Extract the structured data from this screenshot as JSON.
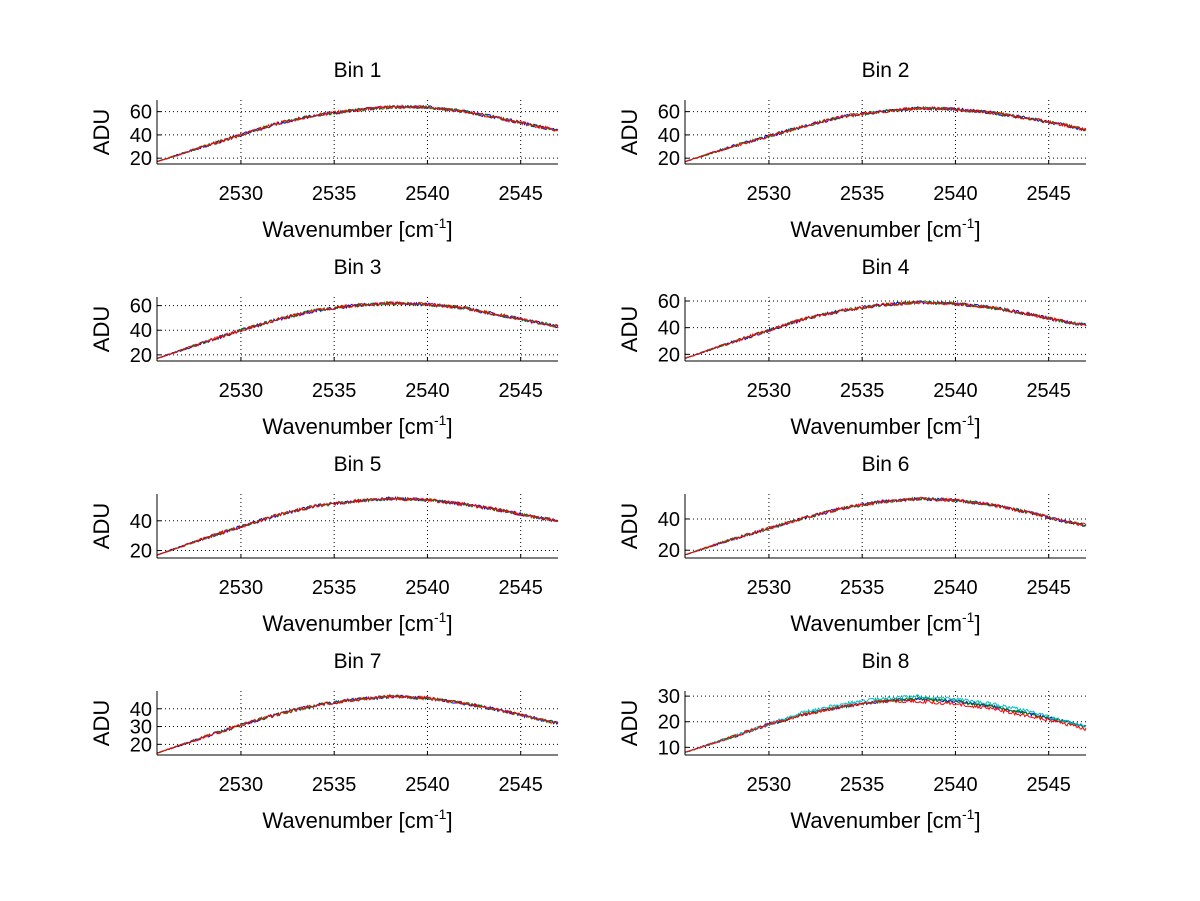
{
  "figure": {
    "background": "#ffffff"
  },
  "chart_data": [
    {
      "type": "line",
      "title": "Bin 1",
      "xlabel": "Wavenumber [cm",
      "xlabel_sup": "-1",
      "xlabel_close": "]",
      "ylabel": "ADU",
      "xlim": [
        2525.5,
        2547
      ],
      "ylim": [
        15,
        70
      ],
      "xticks": [
        2530,
        2535,
        2540,
        2545
      ],
      "yticks": [
        20,
        40,
        60
      ],
      "grid": true,
      "series": [
        {
          "name": "blue",
          "color": "#0000ff",
          "x": [
            2525.5,
            2528,
            2530,
            2532,
            2534,
            2536,
            2538,
            2540,
            2542,
            2544,
            2546,
            2547
          ],
          "y": [
            17,
            30,
            40,
            50,
            57,
            61,
            64,
            64,
            60,
            54,
            47,
            44
          ]
        },
        {
          "name": "green",
          "color": "#008000",
          "x": [
            2525.5,
            2528,
            2530,
            2532,
            2534,
            2536,
            2538,
            2540,
            2542,
            2544,
            2546,
            2547
          ],
          "y": [
            17,
            30,
            40,
            50,
            57,
            61,
            64,
            64,
            60,
            54,
            47,
            44
          ]
        },
        {
          "name": "red",
          "color": "#ff0000",
          "x": [
            2525.5,
            2528,
            2530,
            2532,
            2534,
            2536,
            2538,
            2540,
            2542,
            2544,
            2546,
            2547
          ],
          "y": [
            17,
            30,
            40,
            50,
            57,
            61,
            64,
            64,
            60,
            54,
            47,
            44
          ]
        }
      ]
    },
    {
      "type": "line",
      "title": "Bin 2",
      "xlabel": "Wavenumber [cm",
      "xlabel_sup": "-1",
      "xlabel_close": "]",
      "ylabel": "ADU",
      "xlim": [
        2525.5,
        2547
      ],
      "ylim": [
        15,
        70
      ],
      "xticks": [
        2530,
        2535,
        2540,
        2545
      ],
      "yticks": [
        20,
        40,
        60
      ],
      "grid": true,
      "series": [
        {
          "name": "blue",
          "color": "#0000ff",
          "x": [
            2525.5,
            2528,
            2530,
            2532,
            2534,
            2536,
            2538,
            2540,
            2542,
            2544,
            2546,
            2547
          ],
          "y": [
            17,
            30,
            39,
            48,
            56,
            60,
            63,
            62,
            59,
            54,
            48,
            44
          ]
        },
        {
          "name": "green",
          "color": "#008000",
          "x": [
            2525.5,
            2528,
            2530,
            2532,
            2534,
            2536,
            2538,
            2540,
            2542,
            2544,
            2546,
            2547
          ],
          "y": [
            17,
            30,
            39,
            48,
            56,
            60,
            63,
            62,
            59,
            54,
            48,
            44
          ]
        },
        {
          "name": "red",
          "color": "#ff0000",
          "x": [
            2525.5,
            2528,
            2530,
            2532,
            2534,
            2536,
            2538,
            2540,
            2542,
            2544,
            2546,
            2547
          ],
          "y": [
            17,
            30,
            39,
            48,
            56,
            60,
            63,
            62,
            59,
            54,
            48,
            44
          ]
        }
      ]
    },
    {
      "type": "line",
      "title": "Bin 3",
      "xlabel": "Wavenumber [cm",
      "xlabel_sup": "-1",
      "xlabel_close": "]",
      "ylabel": "ADU",
      "xlim": [
        2525.5,
        2547
      ],
      "ylim": [
        15,
        67
      ],
      "xticks": [
        2530,
        2535,
        2540,
        2545
      ],
      "yticks": [
        20,
        40,
        60
      ],
      "grid": true,
      "series": [
        {
          "name": "blue",
          "color": "#0000ff",
          "x": [
            2525.5,
            2528,
            2530,
            2532,
            2534,
            2536,
            2538,
            2540,
            2542,
            2544,
            2546,
            2547
          ],
          "y": [
            17,
            30,
            40,
            49,
            56,
            60,
            62,
            61,
            58,
            52,
            46,
            43
          ]
        },
        {
          "name": "green",
          "color": "#008000",
          "x": [
            2525.5,
            2528,
            2530,
            2532,
            2534,
            2536,
            2538,
            2540,
            2542,
            2544,
            2546,
            2547
          ],
          "y": [
            17,
            30,
            40,
            49,
            56,
            60,
            62,
            61,
            58,
            52,
            46,
            43
          ]
        },
        {
          "name": "red",
          "color": "#ff0000",
          "x": [
            2525.5,
            2528,
            2530,
            2532,
            2534,
            2536,
            2538,
            2540,
            2542,
            2544,
            2546,
            2547
          ],
          "y": [
            17,
            30,
            40,
            49,
            56,
            60,
            62,
            61,
            58,
            52,
            46,
            43
          ]
        }
      ]
    },
    {
      "type": "line",
      "title": "Bin 4",
      "xlabel": "Wavenumber [cm",
      "xlabel_sup": "-1",
      "xlabel_close": "]",
      "ylabel": "ADU",
      "xlim": [
        2525.5,
        2547
      ],
      "ylim": [
        15,
        63
      ],
      "xticks": [
        2530,
        2535,
        2540,
        2545
      ],
      "yticks": [
        20,
        40,
        60
      ],
      "grid": true,
      "series": [
        {
          "name": "blue",
          "color": "#0000ff",
          "x": [
            2525.5,
            2528,
            2530,
            2532,
            2534,
            2536,
            2538,
            2540,
            2542,
            2544,
            2546,
            2547
          ],
          "y": [
            17,
            29,
            38,
            47,
            53,
            57,
            59,
            58,
            55,
            50,
            44,
            42
          ]
        },
        {
          "name": "green",
          "color": "#008000",
          "x": [
            2525.5,
            2528,
            2530,
            2532,
            2534,
            2536,
            2538,
            2540,
            2542,
            2544,
            2546,
            2547
          ],
          "y": [
            17,
            29,
            38,
            47,
            53,
            57,
            59,
            58,
            55,
            50,
            44,
            42
          ]
        },
        {
          "name": "red",
          "color": "#ff0000",
          "x": [
            2525.5,
            2528,
            2530,
            2532,
            2534,
            2536,
            2538,
            2540,
            2542,
            2544,
            2546,
            2547
          ],
          "y": [
            17,
            29,
            38,
            47,
            53,
            57,
            59,
            58,
            55,
            50,
            44,
            42
          ]
        }
      ]
    },
    {
      "type": "line",
      "title": "Bin 5",
      "xlabel": "Wavenumber [cm",
      "xlabel_sup": "-1",
      "xlabel_close": "]",
      "ylabel": "ADU",
      "xlim": [
        2525.5,
        2547
      ],
      "ylim": [
        15,
        58
      ],
      "xticks": [
        2530,
        2535,
        2540,
        2545
      ],
      "yticks": [
        20,
        40
      ],
      "grid": true,
      "series": [
        {
          "name": "blue",
          "color": "#0000ff",
          "x": [
            2525.5,
            2528,
            2530,
            2532,
            2534,
            2536,
            2538,
            2540,
            2542,
            2544,
            2546,
            2547
          ],
          "y": [
            17,
            28,
            36,
            44,
            50,
            53,
            55,
            54,
            51,
            47,
            42,
            40
          ]
        },
        {
          "name": "green",
          "color": "#008000",
          "x": [
            2525.5,
            2528,
            2530,
            2532,
            2534,
            2536,
            2538,
            2540,
            2542,
            2544,
            2546,
            2547
          ],
          "y": [
            17,
            28,
            36,
            44,
            50,
            53,
            55,
            54,
            51,
            47,
            42,
            40
          ]
        },
        {
          "name": "red",
          "color": "#ff0000",
          "x": [
            2525.5,
            2528,
            2530,
            2532,
            2534,
            2536,
            2538,
            2540,
            2542,
            2544,
            2546,
            2547
          ],
          "y": [
            17,
            28,
            36,
            44,
            50,
            53,
            55,
            54,
            51,
            47,
            42,
            40
          ]
        }
      ]
    },
    {
      "type": "line",
      "title": "Bin 6",
      "xlabel": "Wavenumber [cm",
      "xlabel_sup": "-1",
      "xlabel_close": "]",
      "ylabel": "ADU",
      "xlim": [
        2525.5,
        2547
      ],
      "ylim": [
        15,
        56
      ],
      "xticks": [
        2530,
        2535,
        2540,
        2545
      ],
      "yticks": [
        20,
        40
      ],
      "grid": true,
      "series": [
        {
          "name": "blue",
          "color": "#0000ff",
          "x": [
            2525.5,
            2528,
            2530,
            2532,
            2534,
            2536,
            2538,
            2540,
            2542,
            2544,
            2546,
            2547
          ],
          "y": [
            17,
            27,
            34,
            41,
            47,
            51,
            53,
            52,
            49,
            44,
            38,
            36
          ]
        },
        {
          "name": "green",
          "color": "#008000",
          "x": [
            2525.5,
            2528,
            2530,
            2532,
            2534,
            2536,
            2538,
            2540,
            2542,
            2544,
            2546,
            2547
          ],
          "y": [
            17,
            27,
            34,
            41,
            47,
            51,
            53,
            52,
            49,
            44,
            38,
            36
          ]
        },
        {
          "name": "red",
          "color": "#ff0000",
          "x": [
            2525.5,
            2528,
            2530,
            2532,
            2534,
            2536,
            2538,
            2540,
            2542,
            2544,
            2546,
            2547
          ],
          "y": [
            17,
            27,
            34,
            41,
            47,
            51,
            53,
            52,
            49,
            44,
            38,
            36
          ]
        }
      ]
    },
    {
      "type": "line",
      "title": "Bin 7",
      "xlabel": "Wavenumber [cm",
      "xlabel_sup": "-1",
      "xlabel_close": "]",
      "ylabel": "ADU",
      "xlim": [
        2525.5,
        2547
      ],
      "ylim": [
        14,
        50
      ],
      "xticks": [
        2530,
        2535,
        2540,
        2545
      ],
      "yticks": [
        20,
        30,
        40
      ],
      "grid": true,
      "series": [
        {
          "name": "blue",
          "color": "#0000ff",
          "x": [
            2525.5,
            2528,
            2530,
            2532,
            2534,
            2536,
            2538,
            2540,
            2542,
            2544,
            2546,
            2547
          ],
          "y": [
            15,
            24,
            31,
            37,
            42,
            45,
            47,
            46,
            43,
            39,
            34,
            32
          ]
        },
        {
          "name": "green",
          "color": "#008000",
          "x": [
            2525.5,
            2528,
            2530,
            2532,
            2534,
            2536,
            2538,
            2540,
            2542,
            2544,
            2546,
            2547
          ],
          "y": [
            15,
            24,
            31,
            37,
            42,
            45,
            47,
            46,
            43,
            39,
            34,
            32
          ]
        },
        {
          "name": "red",
          "color": "#ff0000",
          "x": [
            2525.5,
            2528,
            2530,
            2532,
            2534,
            2536,
            2538,
            2540,
            2542,
            2544,
            2546,
            2547
          ],
          "y": [
            15,
            24,
            31,
            37,
            42,
            45,
            47,
            46,
            43,
            39,
            34,
            32
          ]
        }
      ]
    },
    {
      "type": "line",
      "title": "Bin 8",
      "xlabel": "Wavenumber [cm",
      "xlabel_sup": "-1",
      "xlabel_close": "]",
      "ylabel": "ADU",
      "xlim": [
        2525.5,
        2547
      ],
      "ylim": [
        7,
        32
      ],
      "xticks": [
        2530,
        2535,
        2540,
        2545
      ],
      "yticks": [
        10,
        20,
        30
      ],
      "grid": true,
      "series": [
        {
          "name": "blue",
          "color": "#0000ff",
          "x": [
            2525.5,
            2528,
            2530,
            2532,
            2534,
            2536,
            2538,
            2540,
            2542,
            2544,
            2546,
            2547
          ],
          "y": [
            8,
            14,
            19,
            23,
            26,
            28,
            29,
            28,
            26,
            23,
            20,
            18
          ]
        },
        {
          "name": "green",
          "color": "#008000",
          "x": [
            2525.5,
            2528,
            2530,
            2532,
            2534,
            2536,
            2538,
            2540,
            2542,
            2544,
            2546,
            2547
          ],
          "y": [
            8,
            14,
            19,
            23,
            26,
            28,
            29,
            28,
            26,
            23,
            20,
            18
          ]
        },
        {
          "name": "cyan",
          "color": "#00bfbf",
          "x": [
            2525.5,
            2528,
            2530,
            2532,
            2534,
            2536,
            2538,
            2540,
            2542,
            2544,
            2546,
            2547
          ],
          "y": [
            8,
            14,
            19,
            24,
            27,
            29,
            30,
            29,
            27,
            24,
            20,
            18
          ]
        },
        {
          "name": "red",
          "color": "#ff0000",
          "x": [
            2525.5,
            2528,
            2530,
            2532,
            2534,
            2536,
            2538,
            2540,
            2542,
            2544,
            2546,
            2547
          ],
          "y": [
            8,
            14,
            19,
            23,
            26,
            28,
            28,
            27,
            25,
            22,
            19,
            17
          ]
        }
      ]
    }
  ]
}
